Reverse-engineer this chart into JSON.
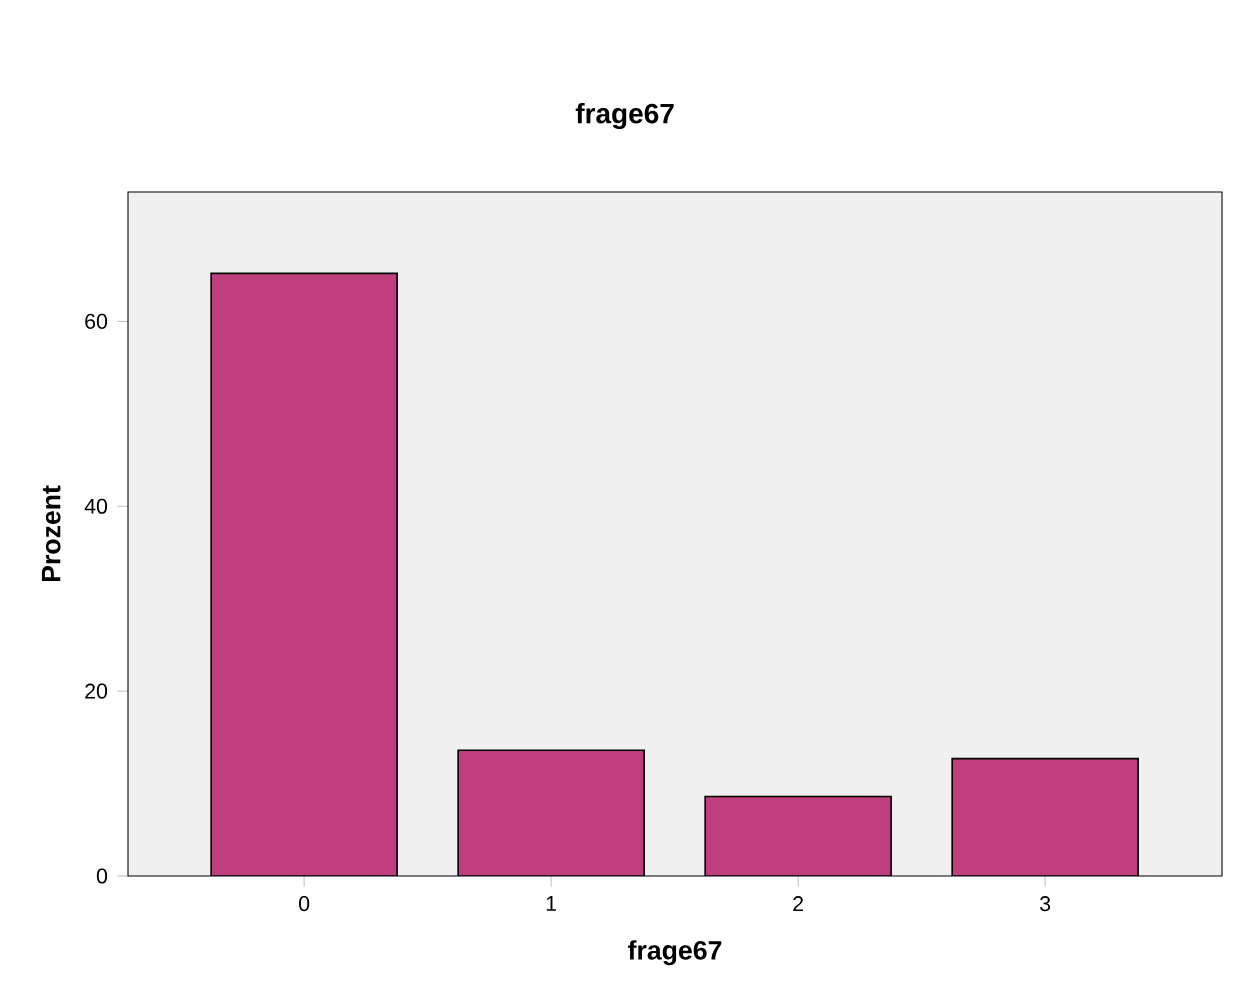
{
  "chart_data": {
    "type": "bar",
    "title": "frage67",
    "xlabel": "frage67",
    "ylabel": "Prozent",
    "categories": [
      "0",
      "1",
      "2",
      "3"
    ],
    "values": [
      65.2,
      13.6,
      8.6,
      12.7
    ],
    "color": "#be3e7e",
    "ylim": [
      0,
      74
    ],
    "yticks": [
      0,
      20,
      40,
      60
    ]
  }
}
